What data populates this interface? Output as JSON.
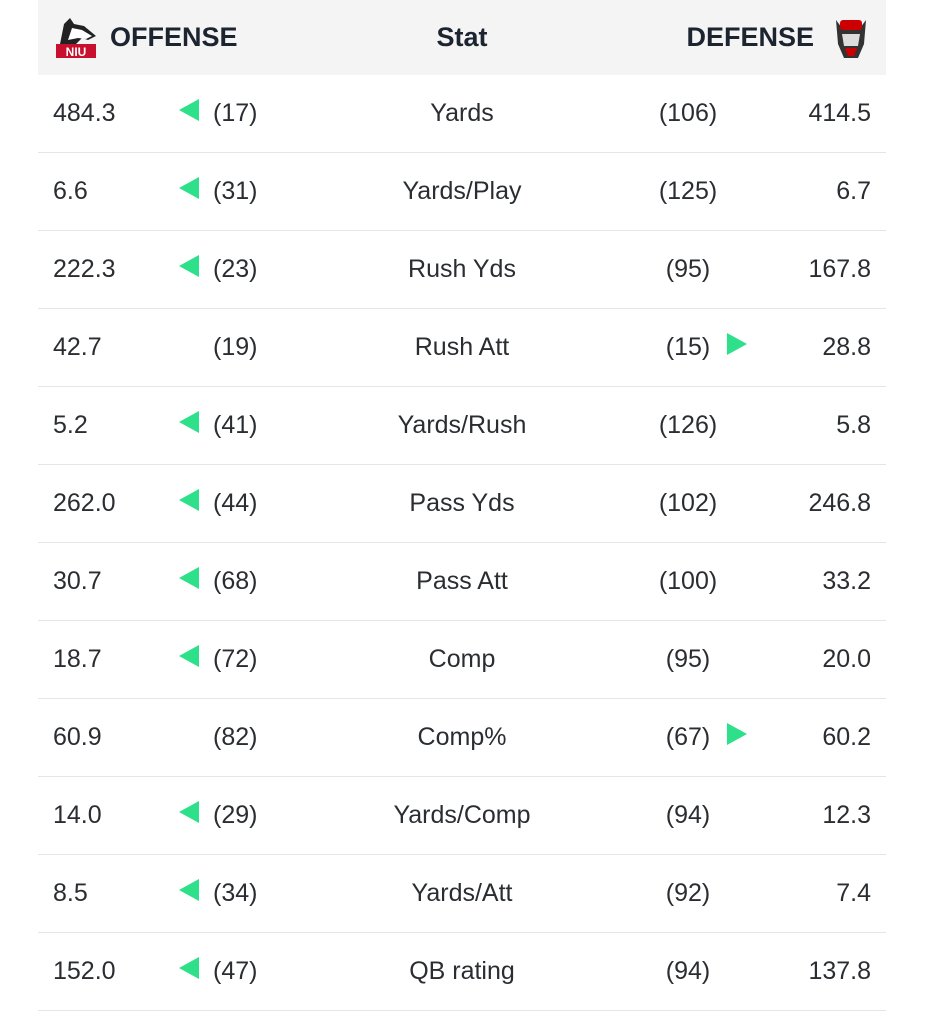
{
  "header": {
    "offense": "OFFENSE",
    "stat": "Stat",
    "defense": "DEFENSE",
    "offense_logo": "NIU",
    "defense_logo": "NC STATE"
  },
  "colors": {
    "arrow": "#2ee08a",
    "header_bg": "#f4f4f5"
  },
  "rows": [
    {
      "off": "484.3",
      "off_rank": "(17)",
      "stat": "Yards",
      "def_rank": "(106)",
      "def": "414.5",
      "arrow": "offense"
    },
    {
      "off": "6.6",
      "off_rank": "(31)",
      "stat": "Yards/Play",
      "def_rank": "(125)",
      "def": "6.7",
      "arrow": "offense"
    },
    {
      "off": "222.3",
      "off_rank": "(23)",
      "stat": "Rush Yds",
      "def_rank": "(95)",
      "def": "167.8",
      "arrow": "offense"
    },
    {
      "off": "42.7",
      "off_rank": "(19)",
      "stat": "Rush Att",
      "def_rank": "(15)",
      "def": "28.8",
      "arrow": "defense"
    },
    {
      "off": "5.2",
      "off_rank": "(41)",
      "stat": "Yards/Rush",
      "def_rank": "(126)",
      "def": "5.8",
      "arrow": "offense"
    },
    {
      "off": "262.0",
      "off_rank": "(44)",
      "stat": "Pass Yds",
      "def_rank": "(102)",
      "def": "246.8",
      "arrow": "offense"
    },
    {
      "off": "30.7",
      "off_rank": "(68)",
      "stat": "Pass Att",
      "def_rank": "(100)",
      "def": "33.2",
      "arrow": "offense"
    },
    {
      "off": "18.7",
      "off_rank": "(72)",
      "stat": "Comp",
      "def_rank": "(95)",
      "def": "20.0",
      "arrow": "offense"
    },
    {
      "off": "60.9",
      "off_rank": "(82)",
      "stat": "Comp%",
      "def_rank": "(67)",
      "def": "60.2",
      "arrow": "defense"
    },
    {
      "off": "14.0",
      "off_rank": "(29)",
      "stat": "Yards/Comp",
      "def_rank": "(94)",
      "def": "12.3",
      "arrow": "offense"
    },
    {
      "off": "8.5",
      "off_rank": "(34)",
      "stat": "Yards/Att",
      "def_rank": "(92)",
      "def": "7.4",
      "arrow": "offense"
    },
    {
      "off": "152.0",
      "off_rank": "(47)",
      "stat": "QB rating",
      "def_rank": "(94)",
      "def": "137.8",
      "arrow": "offense"
    }
  ]
}
